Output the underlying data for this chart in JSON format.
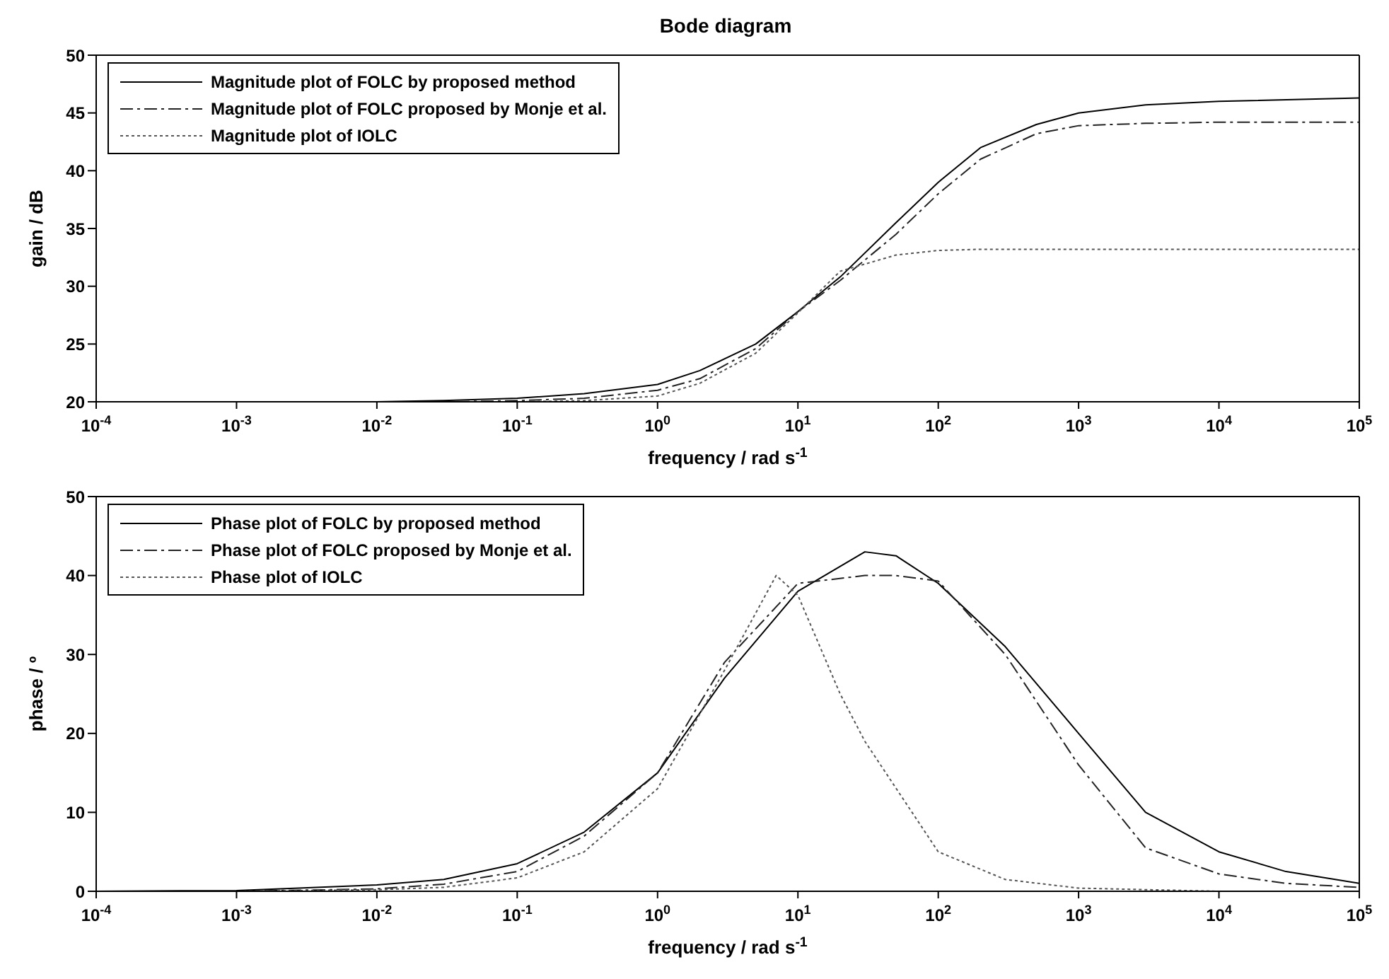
{
  "chart_data": [
    {
      "type": "line",
      "title": "Bode diagram",
      "xlabel": "frequency / rad s$^{-1}$",
      "ylabel": "gain / dB",
      "log": "x",
      "legend": "top left",
      "marker": "none",
      "xlim": [
        0.0001,
        100000
      ],
      "xticks": [
        {
          "value": 0.0001,
          "label": "10$^{-4}$"
        },
        {
          "value": 0.001,
          "label": "10$^{-3}$"
        },
        {
          "value": 0.01,
          "label": "10$^{-2}$"
        },
        {
          "value": 0.1,
          "label": "10$^{-1}$"
        },
        {
          "value": 1,
          "label": "10$^{0}$"
        },
        {
          "value": 10,
          "label": "10$^{1}$"
        },
        {
          "value": 100,
          "label": "10$^{2}$"
        },
        {
          "value": 1000,
          "label": "10$^{3}$"
        },
        {
          "value": 10000,
          "label": "10$^{4}$"
        },
        {
          "value": 100000,
          "label": "10$^{5}$"
        }
      ],
      "ylim": [
        20,
        50
      ],
      "yticks": [
        20,
        25,
        30,
        35,
        40,
        45,
        50
      ],
      "series": [
        {
          "name": "Magnitude plot of FOLC by proposed method",
          "color": "#000000",
          "line_style": "solid",
          "x": [
            0.0001,
            0.001,
            0.01,
            0.03,
            0.1,
            0.3,
            1,
            2,
            5,
            10,
            20,
            50,
            100,
            200,
            500,
            1000,
            3000,
            10000,
            100000
          ],
          "values": [
            20,
            20,
            20,
            20.1,
            20.3,
            20.7,
            21.5,
            22.7,
            25,
            27.8,
            30.8,
            35.5,
            39,
            42,
            44,
            45,
            45.7,
            46,
            46.3
          ]
        },
        {
          "name": "Magnitude plot of FOLC proposed by Monje et al.",
          "color": "#222222",
          "line_style": "dashed",
          "x": [
            0.0001,
            0.001,
            0.01,
            0.03,
            0.1,
            0.3,
            1,
            2,
            5,
            10,
            20,
            50,
            100,
            200,
            500,
            1000,
            3000,
            10000,
            100000
          ],
          "values": [
            20,
            20,
            20,
            20,
            20.1,
            20.3,
            21,
            22,
            24.6,
            27.8,
            30.5,
            34.5,
            38,
            41,
            43.2,
            43.9,
            44.1,
            44.2,
            44.2
          ]
        },
        {
          "name": "Magnitude plot of IOLC",
          "color": "#555555",
          "line_style": "dotted",
          "x": [
            0.0001,
            0.001,
            0.01,
            0.03,
            0.1,
            0.3,
            1,
            2,
            5,
            10,
            20,
            50,
            100,
            200,
            500,
            1000,
            3000,
            10000,
            100000
          ],
          "values": [
            20,
            20,
            20,
            20,
            20,
            20.1,
            20.5,
            21.6,
            24.2,
            27.7,
            31.3,
            32.7,
            33.1,
            33.2,
            33.2,
            33.2,
            33.2,
            33.2,
            33.2
          ]
        }
      ]
    },
    {
      "type": "line",
      "xlabel": "frequency / rad s$^{-1}$",
      "ylabel": "phase / º",
      "log": "x",
      "legend": "top left",
      "marker": "none",
      "xlim": [
        0.0001,
        100000
      ],
      "xticks": [
        {
          "value": 0.0001,
          "label": "10$^{-4}$"
        },
        {
          "value": 0.001,
          "label": "10$^{-3}$"
        },
        {
          "value": 0.01,
          "label": "10$^{-2}$"
        },
        {
          "value": 0.1,
          "label": "10$^{-1}$"
        },
        {
          "value": 1,
          "label": "10$^{0}$"
        },
        {
          "value": 10,
          "label": "10$^{1}$"
        },
        {
          "value": 100,
          "label": "10$^{2}$"
        },
        {
          "value": 1000,
          "label": "10$^{3}$"
        },
        {
          "value": 10000,
          "label": "10$^{4}$"
        },
        {
          "value": 100000,
          "label": "10$^{5}$"
        }
      ],
      "ylim": [
        0,
        50
      ],
      "yticks": [
        0,
        10,
        20,
        30,
        40,
        50
      ],
      "series": [
        {
          "name": "Phase plot of FOLC by proposed method",
          "color": "#000000",
          "line_style": "solid",
          "x": [
            0.0001,
            0.001,
            0.01,
            0.03,
            0.1,
            0.3,
            1,
            3,
            10,
            30,
            50,
            100,
            300,
            1000,
            3000,
            10000,
            30000,
            100000
          ],
          "values": [
            0,
            0.1,
            0.8,
            1.5,
            3.5,
            7.5,
            15,
            27,
            38,
            43,
            42.5,
            39,
            31,
            20,
            10,
            5,
            2.5,
            1
          ]
        },
        {
          "name": "Phase plot of FOLC proposed by Monje et al.",
          "color": "#222222",
          "line_style": "dashed",
          "x": [
            0.0001,
            0.001,
            0.01,
            0.03,
            0.1,
            0.3,
            1,
            3,
            10,
            30,
            50,
            100,
            300,
            1000,
            3000,
            10000,
            30000,
            100000
          ],
          "values": [
            0,
            0,
            0.3,
            0.9,
            2.5,
            7,
            15,
            29,
            39,
            40,
            40,
            39.3,
            30,
            16,
            5.5,
            2.2,
            1,
            0.5
          ]
        },
        {
          "name": "Phase plot of IOLC",
          "color": "#555555",
          "line_style": "dotted",
          "x": [
            0.0001,
            0.001,
            0.01,
            0.03,
            0.1,
            0.3,
            1,
            3,
            7,
            10,
            20,
            30,
            100,
            300,
            1000,
            10000,
            100000
          ],
          "values": [
            0,
            0,
            0.2,
            0.5,
            1.7,
            5,
            13,
            28,
            40,
            37.5,
            25,
            19,
            5,
            1.5,
            0.4,
            0,
            0
          ]
        }
      ]
    }
  ]
}
